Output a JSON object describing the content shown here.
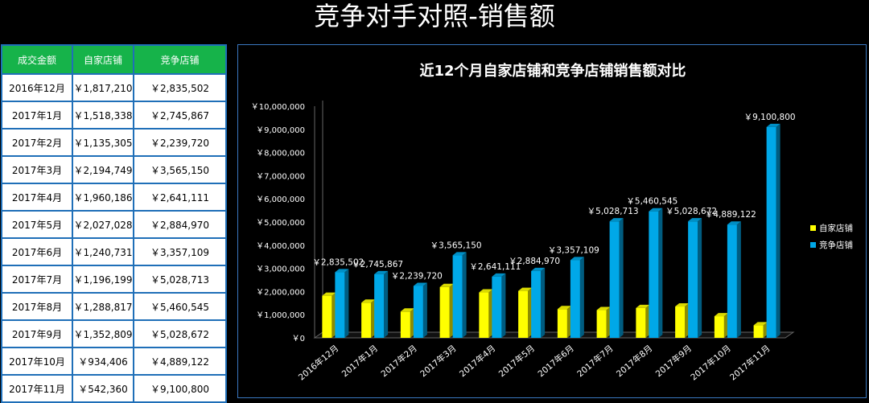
{
  "page": {
    "title": "竞争对手对照-销售额"
  },
  "table": {
    "headers": [
      "成交金额",
      "自家店铺",
      "竞争店铺"
    ],
    "rows": [
      [
        "2016年12月",
        "￥1,817,210",
        "￥2,835,502"
      ],
      [
        "2017年1月",
        "￥1,518,338",
        "￥2,745,867"
      ],
      [
        "2017年2月",
        "￥1,135,305",
        "￥2,239,720"
      ],
      [
        "2017年3月",
        "￥2,194,749",
        "￥3,565,150"
      ],
      [
        "2017年4月",
        "￥1,960,186",
        "￥2,641,111"
      ],
      [
        "2017年5月",
        "￥2,027,028",
        "￥2,884,970"
      ],
      [
        "2017年6月",
        "￥1,240,731",
        "￥3,357,109"
      ],
      [
        "2017年7月",
        "￥1,196,199",
        "￥5,028,713"
      ],
      [
        "2017年8月",
        "￥1,288,817",
        "￥5,460,545"
      ],
      [
        "2017年9月",
        "￥1,352,809",
        "￥5,028,672"
      ],
      [
        "2017年10月",
        "￥934,406",
        "￥4,889,122"
      ],
      [
        "2017年11月",
        "￥542,360",
        "￥9,100,800"
      ]
    ]
  },
  "chart_data": {
    "type": "bar",
    "title": "近12个月自家店铺和竞争店铺销售额对比",
    "categories": [
      "2016年12月",
      "2017年1月",
      "2017年2月",
      "2017年3月",
      "2017年4月",
      "2017年5月",
      "2017年6月",
      "2017年7月",
      "2017年8月",
      "2017年9月",
      "2017年10月",
      "2017年11月"
    ],
    "series": [
      {
        "name": "自家店铺",
        "color": "#ffff00",
        "values": [
          1817210,
          1518338,
          1135305,
          2194749,
          1960186,
          2027028,
          1240731,
          1196199,
          1288817,
          1352809,
          934406,
          542360
        ]
      },
      {
        "name": "竞争店铺",
        "color": "#00a8e8",
        "values": [
          2835502,
          2745867,
          2239720,
          3565150,
          2641111,
          2884970,
          3357109,
          5028713,
          5460545,
          5028672,
          4889122,
          9100800
        ]
      }
    ],
    "data_labels": [
      "￥2,835,502",
      "￥2,745,867",
      "￥2,239,720",
      "￥3,565,150",
      "￥2,641,111",
      "￥2,884,970",
      "￥3,357,109",
      "￥5,028,713",
      "￥5,460,545",
      "￥5,028,672",
      "￥4,889,122",
      "￥9,100,800"
    ],
    "y_ticks": [
      0,
      1000000,
      2000000,
      3000000,
      4000000,
      5000000,
      6000000,
      7000000,
      8000000,
      9000000,
      10000000
    ],
    "y_tick_labels": [
      "￥0",
      "￥1,000,000",
      "￥2,000,000",
      "￥3,000,000",
      "￥4,000,000",
      "￥5,000,000",
      "￥6,000,000",
      "￥7,000,000",
      "￥8,000,000",
      "￥9,000,000",
      "￥10,000,000"
    ],
    "ylim": [
      0,
      10000000
    ],
    "legend": "right",
    "grid": false
  }
}
